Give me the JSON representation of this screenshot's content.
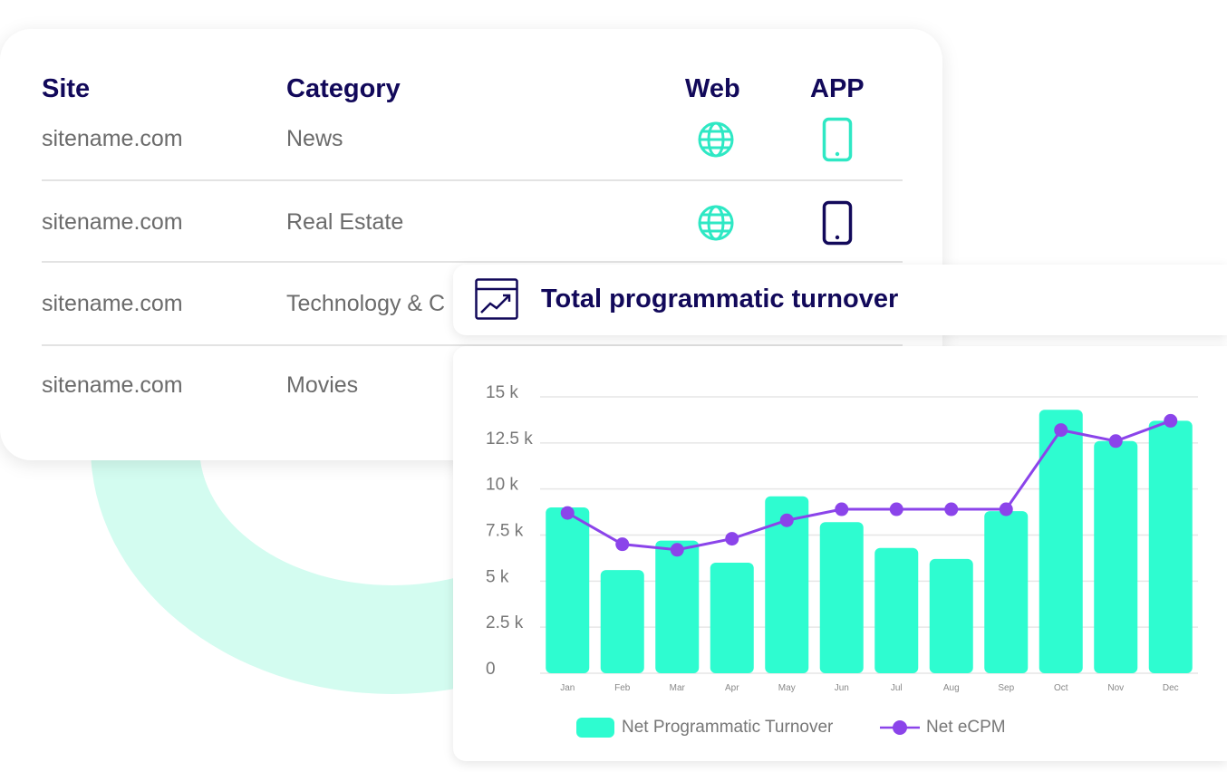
{
  "table": {
    "headers": {
      "site": "Site",
      "category": "Category",
      "web": "Web",
      "app": "APP"
    },
    "rows": [
      {
        "site": "sitename.com",
        "category": "News",
        "web_icon": "globe-icon",
        "app_icon": "smartphone-icon",
        "app_color": "#2ee8c4"
      },
      {
        "site": "sitename.com",
        "category": "Real Estate",
        "web_icon": "globe-icon",
        "app_icon": "smartphone-icon",
        "app_color": "#12095a"
      },
      {
        "site": "sitename.com",
        "category": "Technology & C"
      },
      {
        "site": "sitename.com",
        "category": "Movies"
      }
    ]
  },
  "chart_panel": {
    "title": "Total programmatic turnover",
    "icon": "trending-up-chart-icon"
  },
  "colors": {
    "accent": "#2efcd0",
    "line": "#8b44ea",
    "navy": "#12095a",
    "ring": "#d3fcf0"
  },
  "chart_data": {
    "type": "bar",
    "categories": [
      "Jan",
      "Feb",
      "Mar",
      "Apr",
      "May",
      "Jun",
      "Jul",
      "Aug",
      "Sep",
      "Oct",
      "Nov",
      "Dec"
    ],
    "ytick_labels": [
      "0",
      "2.5 k",
      "5 k",
      "7.5 k",
      "10 k",
      "12.5 k",
      "15 k"
    ],
    "ylim": [
      0,
      15000
    ],
    "series": [
      {
        "name": "Net Programmatic Turnover",
        "type": "bar",
        "values": [
          9000,
          5600,
          7200,
          6000,
          9600,
          8200,
          6800,
          6200,
          8800,
          14300,
          12600,
          13700
        ]
      },
      {
        "name": "Net eCPM",
        "type": "line",
        "values": [
          8700,
          7000,
          6700,
          7300,
          8300,
          8900,
          8900,
          8900,
          8900,
          13200,
          12600,
          13700
        ]
      }
    ],
    "grid": true,
    "legend": "bottom"
  }
}
